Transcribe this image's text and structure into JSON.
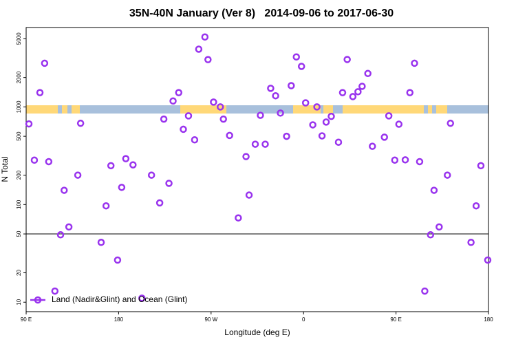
{
  "chart_data": {
    "type": "scatter",
    "title": "35N-40N January (Ver 8)   2014-09-06 to 2017-06-30",
    "x_label": "Longitude (deg E)",
    "y_label": "N Total",
    "log_y": true,
    "xlim": [
      90,
      540
    ],
    "ylim": [
      8,
      6500
    ],
    "xticks": [
      {
        "value": 90,
        "label": "90 E"
      },
      {
        "value": 180,
        "label": "180"
      },
      {
        "value": 270,
        "label": "90 W"
      },
      {
        "value": 360,
        "label": "0"
      },
      {
        "value": 450,
        "label": "90 E"
      },
      {
        "value": 540,
        "label": "180"
      }
    ],
    "yticks": [
      10,
      20,
      50,
      100,
      200,
      500,
      1000,
      2000,
      5000
    ],
    "reference_line": 50,
    "legend_position": "lower left",
    "series": [
      {
        "name": "Land (Nadir&Glint) and Ocean (Glint)",
        "color": "#9933ee",
        "x": [
          92.7,
          98,
          103.4,
          108,
          112,
          118,
          123.5,
          127,
          131.6,
          140.3,
          143,
          163,
          167.8,
          172.5,
          179,
          183,
          187,
          194,
          202.7,
          212,
          220,
          224,
          229,
          233,
          238.5,
          243,
          248,
          254,
          258,
          264,
          267,
          272.4,
          279,
          282,
          288,
          296.5,
          304,
          307,
          313,
          318,
          322.7,
          328,
          332.8,
          337.5,
          343.5,
          348,
          353,
          358,
          362,
          369,
          373,
          378,
          382,
          387,
          394,
          398,
          402.5,
          408,
          413,
          417,
          422.6,
          427,
          438.7,
          443,
          448.8,
          452.8,
          459,
          463.5,
          468,
          473,
          478,
          483.6,
          487,
          492,
          500,
          503,
          523,
          528,
          532.6,
          539.3
        ],
        "values": [
          670,
          285,
          1400,
          2800,
          275,
          13,
          49,
          140,
          59,
          200,
          680,
          41,
          97,
          250,
          27,
          150,
          295,
          255,
          11,
          200,
          104,
          750,
          165,
          1150,
          1400,
          590,
          810,
          460,
          3900,
          5200,
          3050,
          1120,
          1000,
          750,
          510,
          73,
          310,
          125,
          415,
          820,
          415,
          1550,
          1300,
          865,
          500,
          1650,
          3250,
          2600,
          1100,
          655,
          1000,
          505,
          700,
          800,
          435,
          1400,
          3060,
          1275,
          1430,
          1625,
          2200,
          395,
          490,
          810,
          285,
          665,
          287,
          1400,
          2800,
          275,
          13,
          49,
          140,
          59,
          200,
          680,
          41,
          97,
          250,
          27
        ]
      }
    ]
  }
}
